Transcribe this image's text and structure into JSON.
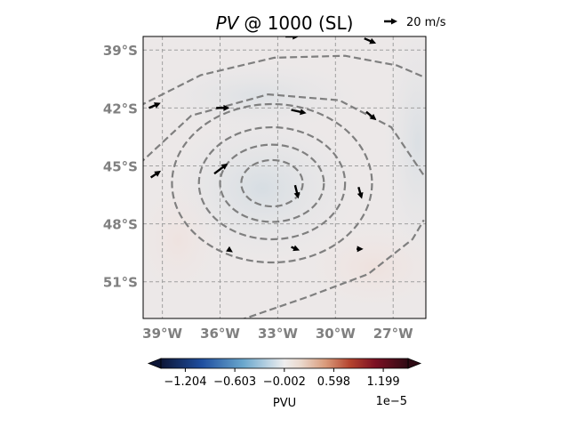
{
  "chart_data": {
    "type": "contour-map",
    "title": {
      "variable": "PV",
      "rest": "@ 1000 (SL)"
    },
    "quiver_key": {
      "label": "20 m/s",
      "speed_ms": 20
    },
    "x_ticks": [
      {
        "lon": -39,
        "label": "39°W"
      },
      {
        "lon": -36,
        "label": "36°W"
      },
      {
        "lon": -33,
        "label": "33°W"
      },
      {
        "lon": -30,
        "label": "30°W"
      },
      {
        "lon": -27,
        "label": "27°W"
      }
    ],
    "y_ticks": [
      {
        "lat": -39,
        "label": "39°S"
      },
      {
        "lat": -42,
        "label": "42°S"
      },
      {
        "lat": -45,
        "label": "45°S"
      },
      {
        "lat": -48,
        "label": "48°S"
      },
      {
        "lat": -51,
        "label": "51°S"
      }
    ],
    "lon_range": [
      -40.0,
      -25.3
    ],
    "lat_range": [
      -52.9,
      -38.3
    ],
    "grid": true,
    "contours": {
      "style": "dashed",
      "color": "#7f7f7f",
      "center": {
        "lon": -33.3,
        "lat": -45.9
      },
      "rings": [
        {
          "rx_deg": 1.6,
          "ry_deg": 1.2
        },
        {
          "rx_deg": 2.7,
          "ry_deg": 2.0
        },
        {
          "rx_deg": 3.8,
          "ry_deg": 2.9
        },
        {
          "rx_deg": 5.2,
          "ry_deg": 4.1
        }
      ]
    },
    "wind_vectors": [
      {
        "lon": -32.6,
        "lat": -38.3,
        "u": 8,
        "v": 0
      },
      {
        "lon": -28.5,
        "lat": -38.4,
        "u": 7,
        "v": -3
      },
      {
        "lon": -39.7,
        "lat": -42.0,
        "u": 7,
        "v": 3
      },
      {
        "lon": -36.2,
        "lat": -42.0,
        "u": 8,
        "v": 0
      },
      {
        "lon": -32.3,
        "lat": -42.1,
        "u": 9,
        "v": -2
      },
      {
        "lon": -28.4,
        "lat": -42.2,
        "u": 6,
        "v": -5
      },
      {
        "lon": -39.6,
        "lat": -45.6,
        "u": 6,
        "v": 4
      },
      {
        "lon": -36.3,
        "lat": -45.4,
        "u": 8,
        "v": 6
      },
      {
        "lon": -32.1,
        "lat": -46.0,
        "u": 2,
        "v": -8
      },
      {
        "lon": -28.8,
        "lat": -46.1,
        "u": 2,
        "v": -7
      },
      {
        "lon": -35.6,
        "lat": -49.3,
        "u": 3,
        "v": -2
      },
      {
        "lon": -32.3,
        "lat": -49.2,
        "u": 5,
        "v": -2
      },
      {
        "lon": -28.9,
        "lat": -49.3,
        "u": 4,
        "v": 0
      }
    ],
    "colorbar": {
      "label": "PVU",
      "offset_text": "1e−5",
      "ticks": [
        {
          "value": -1.204,
          "label": "−1.204"
        },
        {
          "value": -0.603,
          "label": "−0.603"
        },
        {
          "value": -0.002,
          "label": "−0.002"
        },
        {
          "value": 0.598,
          "label": "0.598"
        },
        {
          "value": 1.199,
          "label": "1.199"
        }
      ],
      "range": [
        -1.5,
        1.5
      ],
      "cmap_stops": [
        {
          "value": -1.5,
          "color": "#0d1637"
        },
        {
          "value": -1.0,
          "color": "#1f4fa0"
        },
        {
          "value": -0.5,
          "color": "#6aa7cd"
        },
        {
          "value": -0.15,
          "color": "#c8dae6"
        },
        {
          "value": 0.0,
          "color": "#eeeeee"
        },
        {
          "value": 0.2,
          "color": "#ead8cc"
        },
        {
          "value": 0.5,
          "color": "#d99a7a"
        },
        {
          "value": 0.8,
          "color": "#b4422d"
        },
        {
          "value": 1.1,
          "color": "#7c1023"
        },
        {
          "value": 1.5,
          "color": "#2e0a14"
        }
      ]
    }
  }
}
